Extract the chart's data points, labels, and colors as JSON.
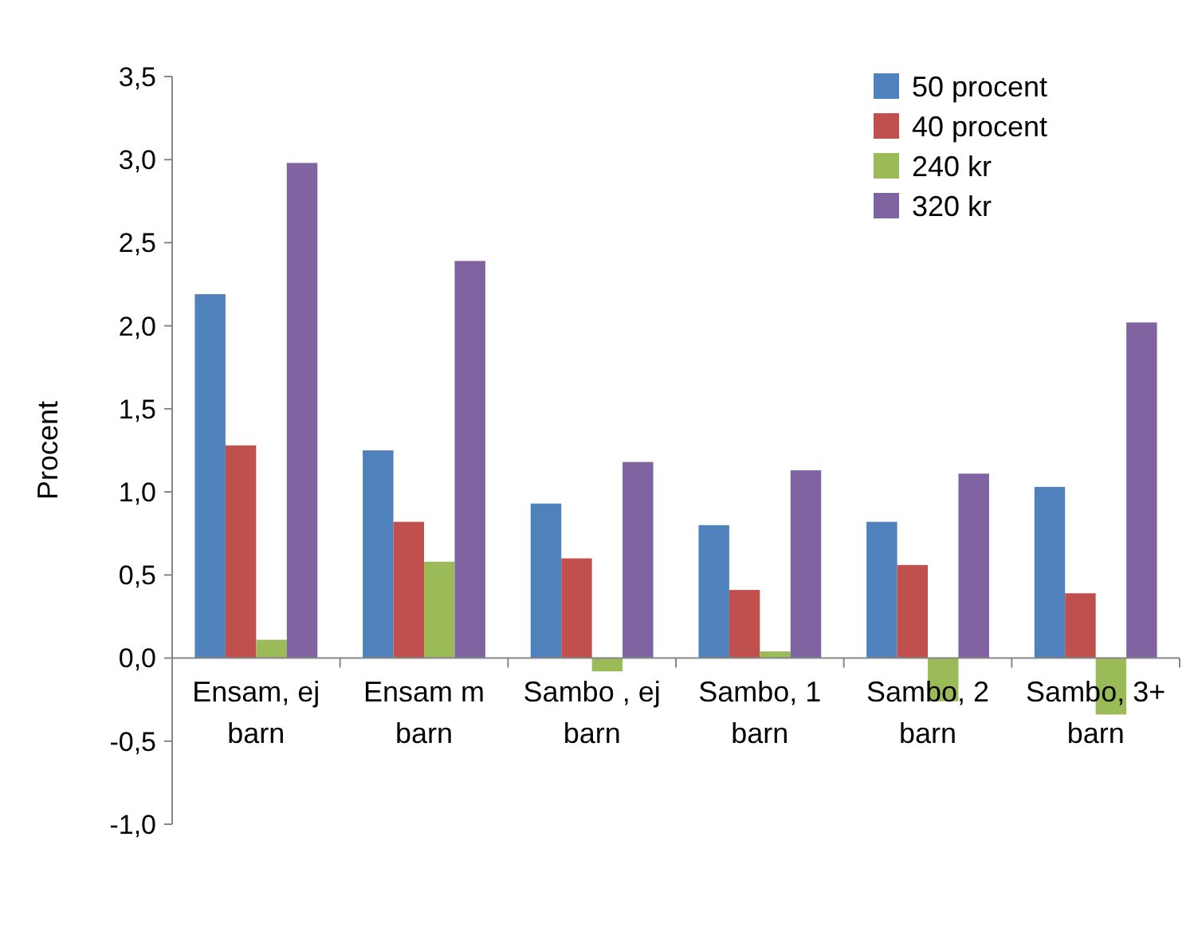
{
  "chart_data": {
    "type": "bar",
    "ylabel": "Procent",
    "categories": [
      "Ensam, ej barn",
      "Ensam m barn",
      "Sambo , ej barn",
      "Sambo, 1 barn",
      "Sambo, 2 barn",
      "Sambo, 3+ barn"
    ],
    "series": [
      {
        "name": "50 procent",
        "color": "#4f81bd",
        "values": [
          2.19,
          1.25,
          0.93,
          0.8,
          0.82,
          1.03
        ]
      },
      {
        "name": "40 procent",
        "color": "#c0504d",
        "values": [
          1.28,
          0.82,
          0.6,
          0.41,
          0.56,
          0.39
        ]
      },
      {
        "name": "240 kr",
        "color": "#9bbb59",
        "values": [
          0.11,
          0.58,
          -0.08,
          0.04,
          -0.26,
          -0.34
        ]
      },
      {
        "name": "320 kr",
        "color": "#8064a2",
        "values": [
          2.98,
          2.39,
          1.18,
          1.13,
          1.11,
          2.02
        ]
      }
    ],
    "ylim": [
      -1,
      3.5
    ],
    "yticks": [
      {
        "value": -1,
        "label": "-1,0"
      },
      {
        "value": -0.5,
        "label": "-0,5"
      },
      {
        "value": 0,
        "label": "0,0"
      },
      {
        "value": 0.5,
        "label": "0,5"
      },
      {
        "value": 1,
        "label": "1,0"
      },
      {
        "value": 1.5,
        "label": "1,5"
      },
      {
        "value": 2,
        "label": "2,0"
      },
      {
        "value": 2.5,
        "label": "2,5"
      },
      {
        "value": 3,
        "label": "3,0"
      },
      {
        "value": 3.5,
        "label": "3,5"
      }
    ],
    "legend": "top right"
  }
}
